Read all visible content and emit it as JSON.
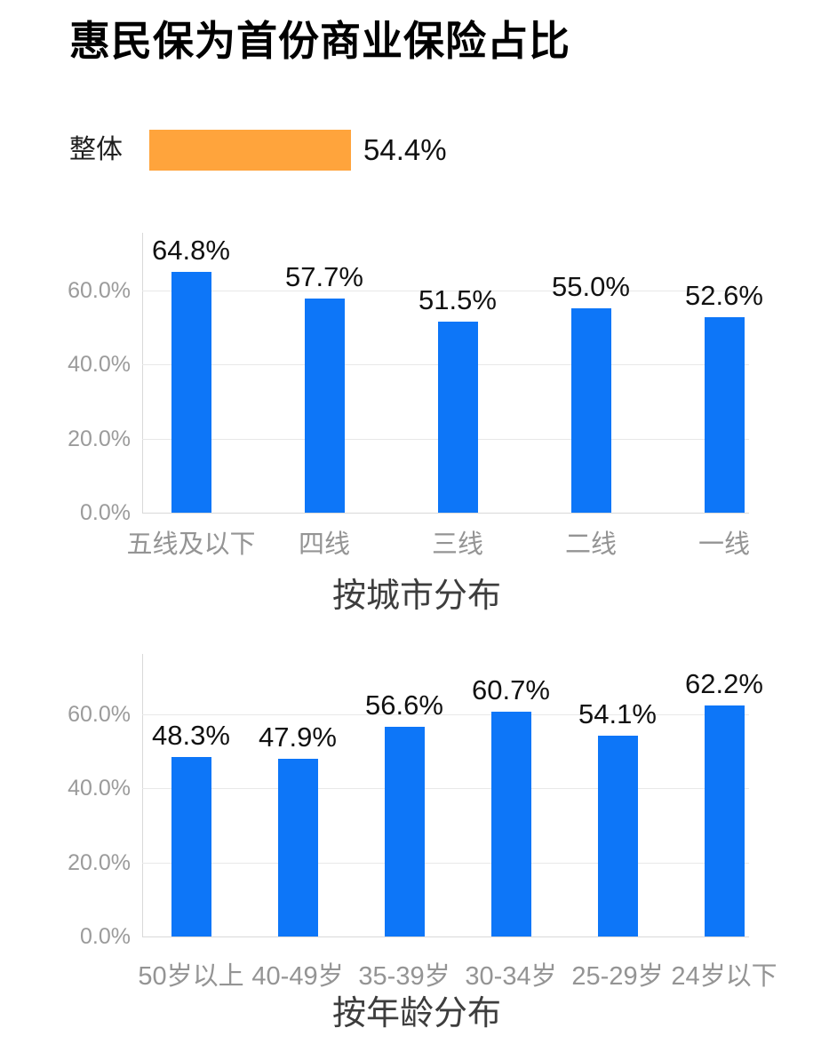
{
  "page": {
    "title": "惠民保为首份商业保险占比"
  },
  "overall": {
    "label": "整体",
    "value": 54.4,
    "value_label": "54.4%"
  },
  "colors": {
    "bar_blue": "#0D76F8",
    "bar_orange": "#FFA43C",
    "value_text": "#111111",
    "axis_tick_text": "#9B9B9B",
    "category_text": "#949494",
    "caption_text": "#3D3D3D",
    "grid_line": "#E8E8E8",
    "axis_line": "#D9D9D9"
  },
  "chart_data": [
    {
      "type": "bar",
      "title": "按城市分布",
      "categories": [
        "五线及以下",
        "四线",
        "三线",
        "二线",
        "一线"
      ],
      "values": [
        64.8,
        57.7,
        51.5,
        55.0,
        52.6
      ],
      "value_labels": [
        "64.8%",
        "57.7%",
        "51.5%",
        "55.0%",
        "52.6%"
      ],
      "yticks": {
        "values": [
          0,
          20,
          40,
          60
        ],
        "labels": [
          "0.0%",
          "20.0%",
          "40.0%",
          "60.0%"
        ]
      },
      "ylim": [
        0,
        75.5
      ],
      "grid": true,
      "legend": null
    },
    {
      "type": "bar",
      "title": "按年龄分布",
      "categories": [
        "50岁以上",
        "40-49岁",
        "35-39岁",
        "30-34岁",
        "25-29岁",
        "24岁以下"
      ],
      "values": [
        48.3,
        47.9,
        56.6,
        60.7,
        54.1,
        62.2
      ],
      "value_labels": [
        "48.3%",
        "47.9%",
        "56.6%",
        "60.7%",
        "54.1%",
        "62.2%"
      ],
      "yticks": {
        "values": [
          0,
          20,
          40,
          60
        ],
        "labels": [
          "0.0%",
          "20.0%",
          "40.0%",
          "60.0%"
        ]
      },
      "ylim": [
        0,
        76
      ],
      "grid": true,
      "legend": null
    }
  ]
}
